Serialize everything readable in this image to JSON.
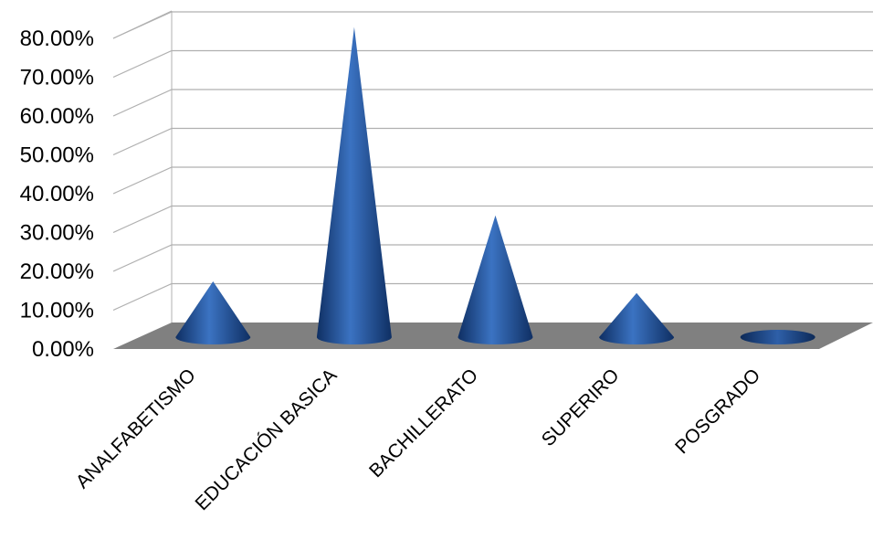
{
  "chart_data": {
    "type": "bar",
    "style": "3d-cone",
    "categories": [
      "ANALFABETISMO",
      "EDUCACIÓN BASICA",
      "BACHILLERATO",
      "SUPERIRO",
      "POSGRADO"
    ],
    "values": [
      14.0,
      79.5,
      31.0,
      11.0,
      0.5
    ],
    "yticks": [
      "0.00%",
      "10.00%",
      "20.00%",
      "30.00%",
      "40.00%",
      "50.00%",
      "60.00%",
      "70.00%",
      "80.00%"
    ],
    "ylim": [
      0,
      80
    ],
    "grid": true,
    "legend": "none",
    "colors": {
      "cone": "#1f4e8f",
      "cone_highlight": "#3b73c2",
      "cone_dark": "#0f2f63",
      "floor": "#808080",
      "grid": "#b0b0b0"
    }
  }
}
